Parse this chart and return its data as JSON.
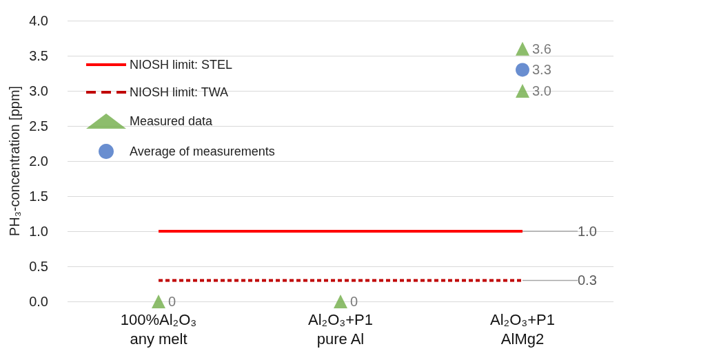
{
  "chart_data": {
    "type": "scatter",
    "ylabel": "PH₃-concentration [ppm]",
    "categories": [
      "100%Al₂O₃\nany melt",
      "Al₂O₃+P1\npure Al",
      "Al₂O₃+P1\nAlMg2"
    ],
    "ylim": [
      0,
      4
    ],
    "yticks": [
      {
        "value": 0,
        "label": "0.0"
      },
      {
        "value": 0.5,
        "label": "0.5"
      },
      {
        "value": 1,
        "label": "1.0"
      },
      {
        "value": 1.5,
        "label": "1.5"
      },
      {
        "value": 2,
        "label": "2.0"
      },
      {
        "value": 2.5,
        "label": "2.5"
      },
      {
        "value": 3,
        "label": "3.0"
      },
      {
        "value": 3.5,
        "label": "3.5"
      },
      {
        "value": 4,
        "label": "4.0"
      }
    ],
    "grid": "y",
    "legend": "top left",
    "series": [
      {
        "name": "NIOSH limit: STEL",
        "type": "line",
        "color": "#ff0000",
        "line_style": "solid",
        "marker": "none",
        "values": [
          1.0,
          1.0,
          1.0
        ],
        "value_labels": [
          null,
          null,
          "1.0"
        ]
      },
      {
        "name": "NIOSH limit: TWA",
        "type": "line",
        "color": "#c00000",
        "line_style": "dashed",
        "marker": "none",
        "values": [
          0.3,
          0.3,
          0.3
        ],
        "value_labels": [
          null,
          null,
          "0.3"
        ]
      },
      {
        "name": "Measured data",
        "color": "#70ad47",
        "marker": "triangle",
        "x": [
          "100%Al₂O₃\nany melt",
          "Al₂O₃+P1\npure Al",
          "Al₂O₃+P1\nAlMg2",
          "Al₂O₃+P1\nAlMg2"
        ],
        "values": [
          0,
          0,
          3.6,
          3.0
        ],
        "value_labels": [
          "0",
          "0",
          "3.6",
          "3.0"
        ]
      },
      {
        "name": "Average of measurements",
        "color": "#4472c4",
        "marker": "circle",
        "x": [
          "Al₂O₃+P1\nAlMg2"
        ],
        "values": [
          3.3
        ],
        "value_labels": [
          "3.3"
        ]
      }
    ]
  }
}
